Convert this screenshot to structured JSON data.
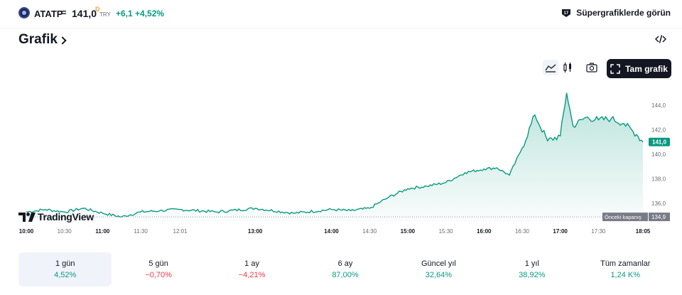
{
  "header": {
    "symbol": "ATATP",
    "separator": "=",
    "price": "141,0",
    "price_dot": "D",
    "currency": "TRY",
    "change": "+6,1",
    "change_pct": "+4,52%",
    "super_link": "Süpergrafiklerde görün"
  },
  "section": {
    "title": "Grafik"
  },
  "toolbar": {
    "full_chart_label": "Tam grafik"
  },
  "chart_data": {
    "type": "area",
    "x_ticks": [
      "10:00",
      "10:30",
      "11:00",
      "11:30",
      "12:01",
      "13:00",
      "14:00",
      "14:30",
      "15:00",
      "15:30",
      "16:00",
      "16:30",
      "17:00",
      "17:30",
      "18:05"
    ],
    "y_ticks": [
      "144,0",
      "142,0",
      "140,0",
      "138,0",
      "136,0"
    ],
    "ylim": [
      134.5,
      145.5
    ],
    "x": [
      "10:00",
      "10:15",
      "10:30",
      "10:45",
      "11:00",
      "11:15",
      "11:30",
      "11:45",
      "12:01",
      "12:30",
      "13:00",
      "13:30",
      "14:00",
      "14:15",
      "14:30",
      "14:45",
      "15:00",
      "15:15",
      "15:30",
      "15:45",
      "16:00",
      "16:10",
      "16:20",
      "16:30",
      "16:40",
      "16:50",
      "17:00",
      "17:05",
      "17:10",
      "17:20",
      "17:30",
      "17:40",
      "17:50",
      "18:00",
      "18:05"
    ],
    "values": [
      135.3,
      135.5,
      135.3,
      135.6,
      135.2,
      134.9,
      135.3,
      135.4,
      135.5,
      135.3,
      135.6,
      135.2,
      135.5,
      135.4,
      135.6,
      136.5,
      137.2,
      137.4,
      137.7,
      138.5,
      138.8,
      138.9,
      138.3,
      140.5,
      143.2,
      141.1,
      141.5,
      145.0,
      142.3,
      143.0,
      142.8,
      142.9,
      142.5,
      141.6,
      141.0
    ],
    "last_label": "141,0",
    "prev_close": 134.9,
    "prev_close_label": "Önceki kapanış",
    "prev_close_value": "134,9",
    "watermark": "TradingView"
  },
  "periods": [
    {
      "label": "1 gün",
      "value": "4,52%",
      "dir": "up"
    },
    {
      "label": "5 gün",
      "value": "−0,70%",
      "dir": "down"
    },
    {
      "label": "1 ay",
      "value": "−4,21%",
      "dir": "down"
    },
    {
      "label": "6 ay",
      "value": "87,00%",
      "dir": "up"
    },
    {
      "label": "Güncel yıl",
      "value": "32,64%",
      "dir": "up"
    },
    {
      "label": "1 yıl",
      "value": "38,92%",
      "dir": "up"
    },
    {
      "label": "Tüm zamanlar",
      "value": "1,24 K%",
      "dir": "up"
    }
  ],
  "colors": {
    "accent": "#089981",
    "down": "#f23645",
    "text": "#131722",
    "muted": "#6a6d78"
  }
}
